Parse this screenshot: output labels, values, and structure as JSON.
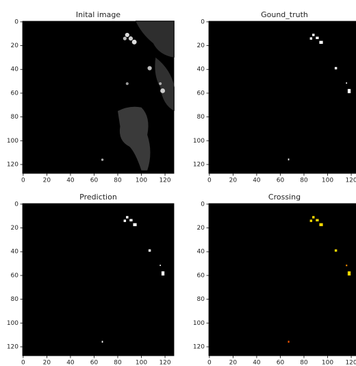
{
  "chart_data": [
    {
      "type": "image",
      "title": "Inital image",
      "xlim": [
        -0.5,
        127.5
      ],
      "ylim": [
        127.5,
        -0.5
      ],
      "xticks": [
        0,
        20,
        40,
        60,
        80,
        100,
        120
      ],
      "yticks": [
        0,
        20,
        40,
        60,
        80,
        100,
        120
      ]
    },
    {
      "type": "image",
      "title": "Gound_truth",
      "xlim": [
        -0.5,
        127.5
      ],
      "ylim": [
        127.5,
        -0.5
      ],
      "xticks": [
        0,
        20,
        40,
        60,
        80,
        100,
        120
      ],
      "yticks": [
        0,
        20,
        40,
        60,
        80,
        100,
        120
      ]
    },
    {
      "type": "image",
      "title": "Prediction",
      "xlim": [
        -0.5,
        127.5
      ],
      "ylim": [
        127.5,
        -0.5
      ],
      "xticks": [
        0,
        20,
        40,
        60,
        80,
        100,
        120
      ],
      "yticks": [
        0,
        20,
        40,
        60,
        80,
        100,
        120
      ]
    },
    {
      "type": "image",
      "title": "Crossing",
      "xlim": [
        -0.5,
        127.5
      ],
      "ylim": [
        127.5,
        -0.5
      ],
      "xticks": [
        0,
        20,
        40,
        60,
        80,
        100,
        120
      ],
      "yticks": [
        0,
        20,
        40,
        60,
        80,
        100,
        120
      ]
    }
  ]
}
